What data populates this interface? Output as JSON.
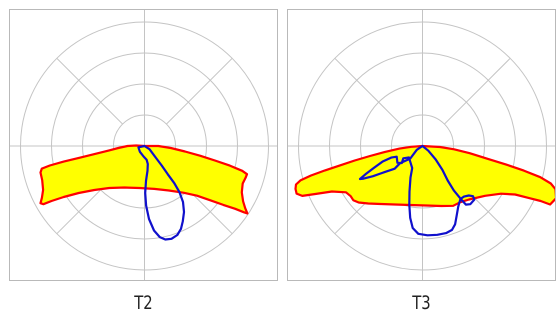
{
  "chart_data": [
    {
      "type": "polar",
      "caption": "T2",
      "grid": true,
      "colors": {
        "fill": "#ffff00",
        "outline": "#ff0000",
        "curve": "#1010cc",
        "grid": "#c4c4c4"
      },
      "series": [
        {
          "style": "filled",
          "points": [
            [
              0.0,
              0.0
            ],
            [
              -8.3,
              -0.5
            ],
            [
              -17.0,
              0.0
            ],
            [
              -26.2,
              2.0
            ],
            [
              -35.4,
              4.4
            ],
            [
              -50.5,
              8.2
            ],
            [
              -65.2,
              11.8
            ],
            [
              -80.8,
              15.6
            ],
            [
              -94.7,
              19.5
            ],
            [
              -102.7,
              22.6
            ],
            [
              -104.0,
              26.5
            ],
            [
              -102.3,
              34.2
            ],
            [
              -101.4,
              43.9
            ],
            [
              -102.6,
              51.8
            ],
            [
              -104.0,
              57.2
            ],
            [
              -101.1,
              58.2
            ],
            [
              -93.0,
              55.0
            ],
            [
              -80.8,
              51.0
            ],
            [
              -65.8,
              47.0
            ],
            [
              -50.2,
              44.0
            ],
            [
              -35.3,
              42.0
            ],
            [
              -20.2,
              41.5
            ],
            [
              -5.1,
              42.0
            ],
            [
              9.7,
              42.9
            ],
            [
              24.4,
              44.5
            ],
            [
              39.5,
              46.8
            ],
            [
              52.5,
              49.7
            ],
            [
              66.2,
              54.4
            ],
            [
              78.8,
              58.9
            ],
            [
              90.7,
              62.8
            ],
            [
              99.5,
              66.3
            ],
            [
              102.9,
              67.4
            ],
            [
              100.7,
              62.2
            ],
            [
              98.6,
              55.3
            ],
            [
              97.3,
              46.4
            ],
            [
              98.2,
              37.5
            ],
            [
              101.2,
              31.5
            ],
            [
              102.5,
              28.2
            ],
            [
              97.7,
              24.8
            ],
            [
              85.3,
              19.6
            ],
            [
              70.4,
              14.5
            ],
            [
              55.9,
              9.8
            ],
            [
              40.5,
              5.5
            ],
            [
              26.3,
              2.0
            ],
            [
              13.8,
              0.0
            ],
            [
              0.0,
              0.0
            ]
          ]
        },
        {
          "style": "outline",
          "points": [
            [
              0.0,
              0.0
            ],
            [
              -6.1,
              1.3
            ],
            [
              -4.6,
              5.8
            ],
            [
              -0.9,
              10.5
            ],
            [
              2.1,
              13.7
            ],
            [
              3.3,
              18.0
            ],
            [
              3.0,
              24.8
            ],
            [
              1.5,
              34.8
            ],
            [
              0.7,
              47.0
            ],
            [
              1.6,
              59.5
            ],
            [
              4.5,
              73.0
            ],
            [
              9.5,
              84.5
            ],
            [
              15.3,
              91.1
            ],
            [
              20.8,
              93.5
            ],
            [
              27.0,
              92.8
            ],
            [
              32.8,
              89.0
            ],
            [
              36.5,
              82.8
            ],
            [
              38.3,
              75.2
            ],
            [
              39.5,
              66.0
            ],
            [
              38.5,
              56.0
            ],
            [
              35.0,
              46.2
            ],
            [
              29.8,
              37.2
            ],
            [
              23.3,
              28.3
            ],
            [
              17.2,
              19.5
            ],
            [
              10.8,
              11.0
            ],
            [
              5.0,
              3.2
            ],
            [
              0.0,
              0.0
            ]
          ]
        }
      ]
    },
    {
      "type": "polar",
      "caption": "T3",
      "grid": true,
      "colors": {
        "fill": "#ffff00",
        "outline": "#ff0000",
        "curve": "#1010cc",
        "grid": "#c4c4c4"
      },
      "series": [
        {
          "style": "filled",
          "points": [
            [
              0.0,
              0.0
            ],
            [
              -11.2,
              0.8
            ],
            [
              -23.0,
              2.6
            ],
            [
              -37.5,
              5.9
            ],
            [
              -52.5,
              10.0
            ],
            [
              -67.8,
              14.5
            ],
            [
              -83.3,
              19.7
            ],
            [
              -97.5,
              24.4
            ],
            [
              -111.5,
              29.5
            ],
            [
              -121.8,
              34.2
            ],
            [
              -126.5,
              38.5
            ],
            [
              -127.0,
              42.9
            ],
            [
              -125.9,
              47.6
            ],
            [
              -120.2,
              49.9
            ],
            [
              -106.4,
              47.9
            ],
            [
              -90.6,
              45.5
            ],
            [
              -76.5,
              46.3
            ],
            [
              -71.8,
              50.2
            ],
            [
              -69.2,
              54.2
            ],
            [
              -63.8,
              56.5
            ],
            [
              -54.2,
              57.5
            ],
            [
              -41.8,
              58.0
            ],
            [
              -27.5,
              58.5
            ],
            [
              -12.2,
              59.0
            ],
            [
              3.6,
              59.5
            ],
            [
              18.9,
              60.0
            ],
            [
              30.7,
              59.8
            ],
            [
              37.5,
              56.3
            ],
            [
              46.5,
              53.5
            ],
            [
              62.6,
              49.8
            ],
            [
              78.5,
              47.7
            ],
            [
              92.6,
              48.5
            ],
            [
              106.1,
              51.9
            ],
            [
              118.2,
              55.0
            ],
            [
              127.6,
              58.5
            ],
            [
              133.6,
              52.2
            ],
            [
              133.0,
              43.2
            ],
            [
              128.3,
              37.5
            ],
            [
              117.8,
              31.2
            ],
            [
              101.3,
              24.6
            ],
            [
              84.1,
              18.7
            ],
            [
              65.1,
              12.8
            ],
            [
              47.2,
              7.2
            ],
            [
              31.6,
              3.3
            ],
            [
              17.5,
              1.0
            ],
            [
              0.0,
              0.0
            ]
          ]
        },
        {
          "style": "outline",
          "points": [
            [
              0.0,
              0.0
            ],
            [
              -5.7,
              3.8
            ],
            [
              -12.3,
              12.6
            ],
            [
              -22.6,
              17.3
            ],
            [
              -27.8,
              22.7
            ],
            [
              -38.2,
              26.2
            ],
            [
              -49.5,
              30.2
            ],
            [
              -58.8,
              32.6
            ],
            [
              -62.5,
              33.0
            ],
            [
              -57.2,
              28.4
            ],
            [
              -48.6,
              21.9
            ],
            [
              -39.8,
              15.5
            ],
            [
              -31.3,
              11.6
            ],
            [
              -25.8,
              10.7
            ],
            [
              -25.1,
              16.8
            ],
            [
              -20.7,
              17.0
            ],
            [
              -19.2,
              12.3
            ],
            [
              -13.6,
              11.4
            ],
            [
              -10.3,
              22.1
            ],
            [
              -12.0,
              31.6
            ],
            [
              -13.0,
              45.4
            ],
            [
              -13.2,
              58.7
            ],
            [
              -12.3,
              71.9
            ],
            [
              -9.8,
              82.0
            ],
            [
              -4.2,
              87.8
            ],
            [
              5.0,
              89.3
            ],
            [
              14.8,
              88.8
            ],
            [
              23.6,
              87.1
            ],
            [
              29.5,
              83.9
            ],
            [
              32.6,
              78.3
            ],
            [
              34.2,
              69.4
            ],
            [
              35.7,
              60.8
            ],
            [
              37.9,
              53.0
            ],
            [
              41.5,
              50.6
            ],
            [
              46.3,
              49.5
            ],
            [
              50.5,
              50.2
            ],
            [
              51.8,
              53.6
            ],
            [
              47.8,
              58.2
            ],
            [
              43.4,
              58.6
            ],
            [
              38.4,
              53.1
            ],
            [
              31.3,
              44.4
            ],
            [
              25.2,
              34.5
            ],
            [
              19.9,
              23.9
            ],
            [
              13.2,
              13.5
            ],
            [
              5.8,
              4.7
            ],
            [
              0.0,
              0.0
            ]
          ]
        }
      ]
    }
  ]
}
